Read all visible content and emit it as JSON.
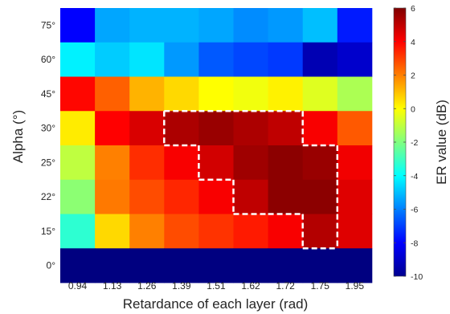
{
  "chart_data": {
    "type": "heatmap",
    "title": "",
    "xlabel": "Retardance of each layer (rad)",
    "ylabel": "Alpha (°)",
    "colorbar_label": "ER value (dB)",
    "colormap": "jet",
    "clim": [
      -10,
      6
    ],
    "colorbar_ticks": [
      "6",
      "4",
      "2",
      "0",
      "-2",
      "-4",
      "-6",
      "-8",
      "-10"
    ],
    "colorbar_tick_values": [
      6,
      4,
      2,
      0,
      -2,
      -4,
      -6,
      -8,
      -10
    ],
    "x_categories": [
      "0.94",
      "1.13",
      "1.26",
      "1.39",
      "1.51",
      "1.62",
      "1.72",
      "1.75",
      "1.95"
    ],
    "y_categories": [
      "75°",
      "60°",
      "45°",
      "30°",
      "25°",
      "22°",
      "15°",
      "0°"
    ],
    "values": [
      [
        -8.0,
        -5.4,
        -5.2,
        -5.2,
        -5.4,
        -5.8,
        -5.6,
        -5.0,
        -7.6
      ],
      [
        -4.2,
        -4.8,
        -4.4,
        -5.6,
        -6.6,
        -6.9,
        -7.1,
        -9.2,
        -8.8
      ],
      [
        3.9,
        2.5,
        1.2,
        0.6,
        0.0,
        -0.2,
        0.2,
        -0.5,
        -1.3
      ],
      [
        0.3,
        4.0,
        4.6,
        5.3,
        5.6,
        5.3,
        5.0,
        4.1,
        2.6
      ],
      [
        -1.0,
        2.0,
        3.3,
        4.1,
        4.7,
        5.5,
        5.8,
        5.6,
        4.2
      ],
      [
        -1.8,
        2.1,
        2.8,
        3.4,
        4.1,
        5.0,
        5.8,
        5.8,
        4.5
      ],
      [
        -3.3,
        0.6,
        2.0,
        2.8,
        3.2,
        3.6,
        4.1,
        5.2,
        4.5
      ],
      [
        -10.0,
        -10.0,
        -10.0,
        -10.0,
        -10.0,
        -10.0,
        -10.0,
        -10.0,
        -10.0
      ]
    ],
    "highlight_region": {
      "style": "dashed",
      "color": "#ffffff",
      "cells": [
        [
          3,
          3
        ],
        [
          3,
          4
        ],
        [
          3,
          5
        ],
        [
          3,
          6
        ],
        [
          4,
          4
        ],
        [
          4,
          5
        ],
        [
          4,
          6
        ],
        [
          4,
          7
        ],
        [
          5,
          5
        ],
        [
          5,
          6
        ],
        [
          5,
          7
        ],
        [
          6,
          7
        ]
      ]
    }
  }
}
